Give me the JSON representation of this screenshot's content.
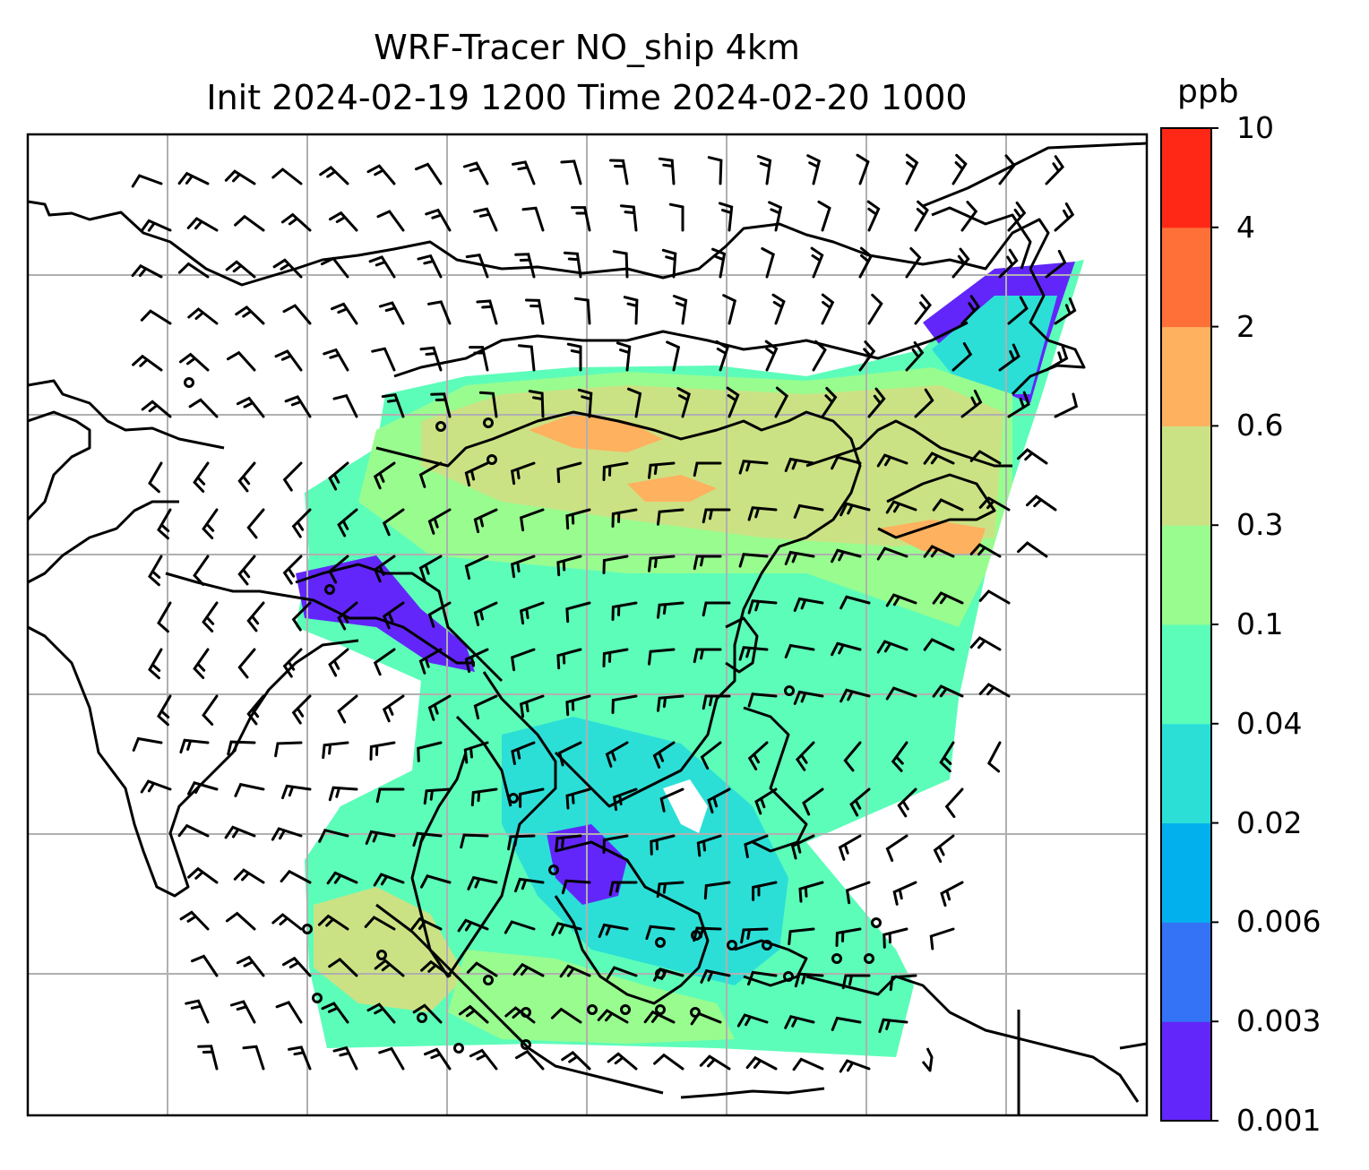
{
  "title": {
    "line1": "WRF-Tracer NO_ship 4km",
    "line2": "Init 2024-02-19 1200 Time 2024-02-20 1000"
  },
  "colorbar": {
    "unit": "ppb",
    "ticks": [
      "0.001",
      "0.003",
      "0.006",
      "0.02",
      "0.04",
      "0.1",
      "0.3",
      "0.6",
      "2",
      "4",
      "10"
    ],
    "colors": [
      "#6226fa",
      "#3473f5",
      "#03b0ee",
      "#2bdfd7",
      "#5cfdb9",
      "#99fc8f",
      "#cbe284",
      "#feb15f",
      "#fe7038",
      "#ff2816"
    ]
  },
  "map": {
    "background": "#ffffff",
    "gridlines": true,
    "gridline_color": "#b0b0b0",
    "coastline_color": "#000000",
    "wind_barbs": true,
    "station_markers": "circle"
  }
}
